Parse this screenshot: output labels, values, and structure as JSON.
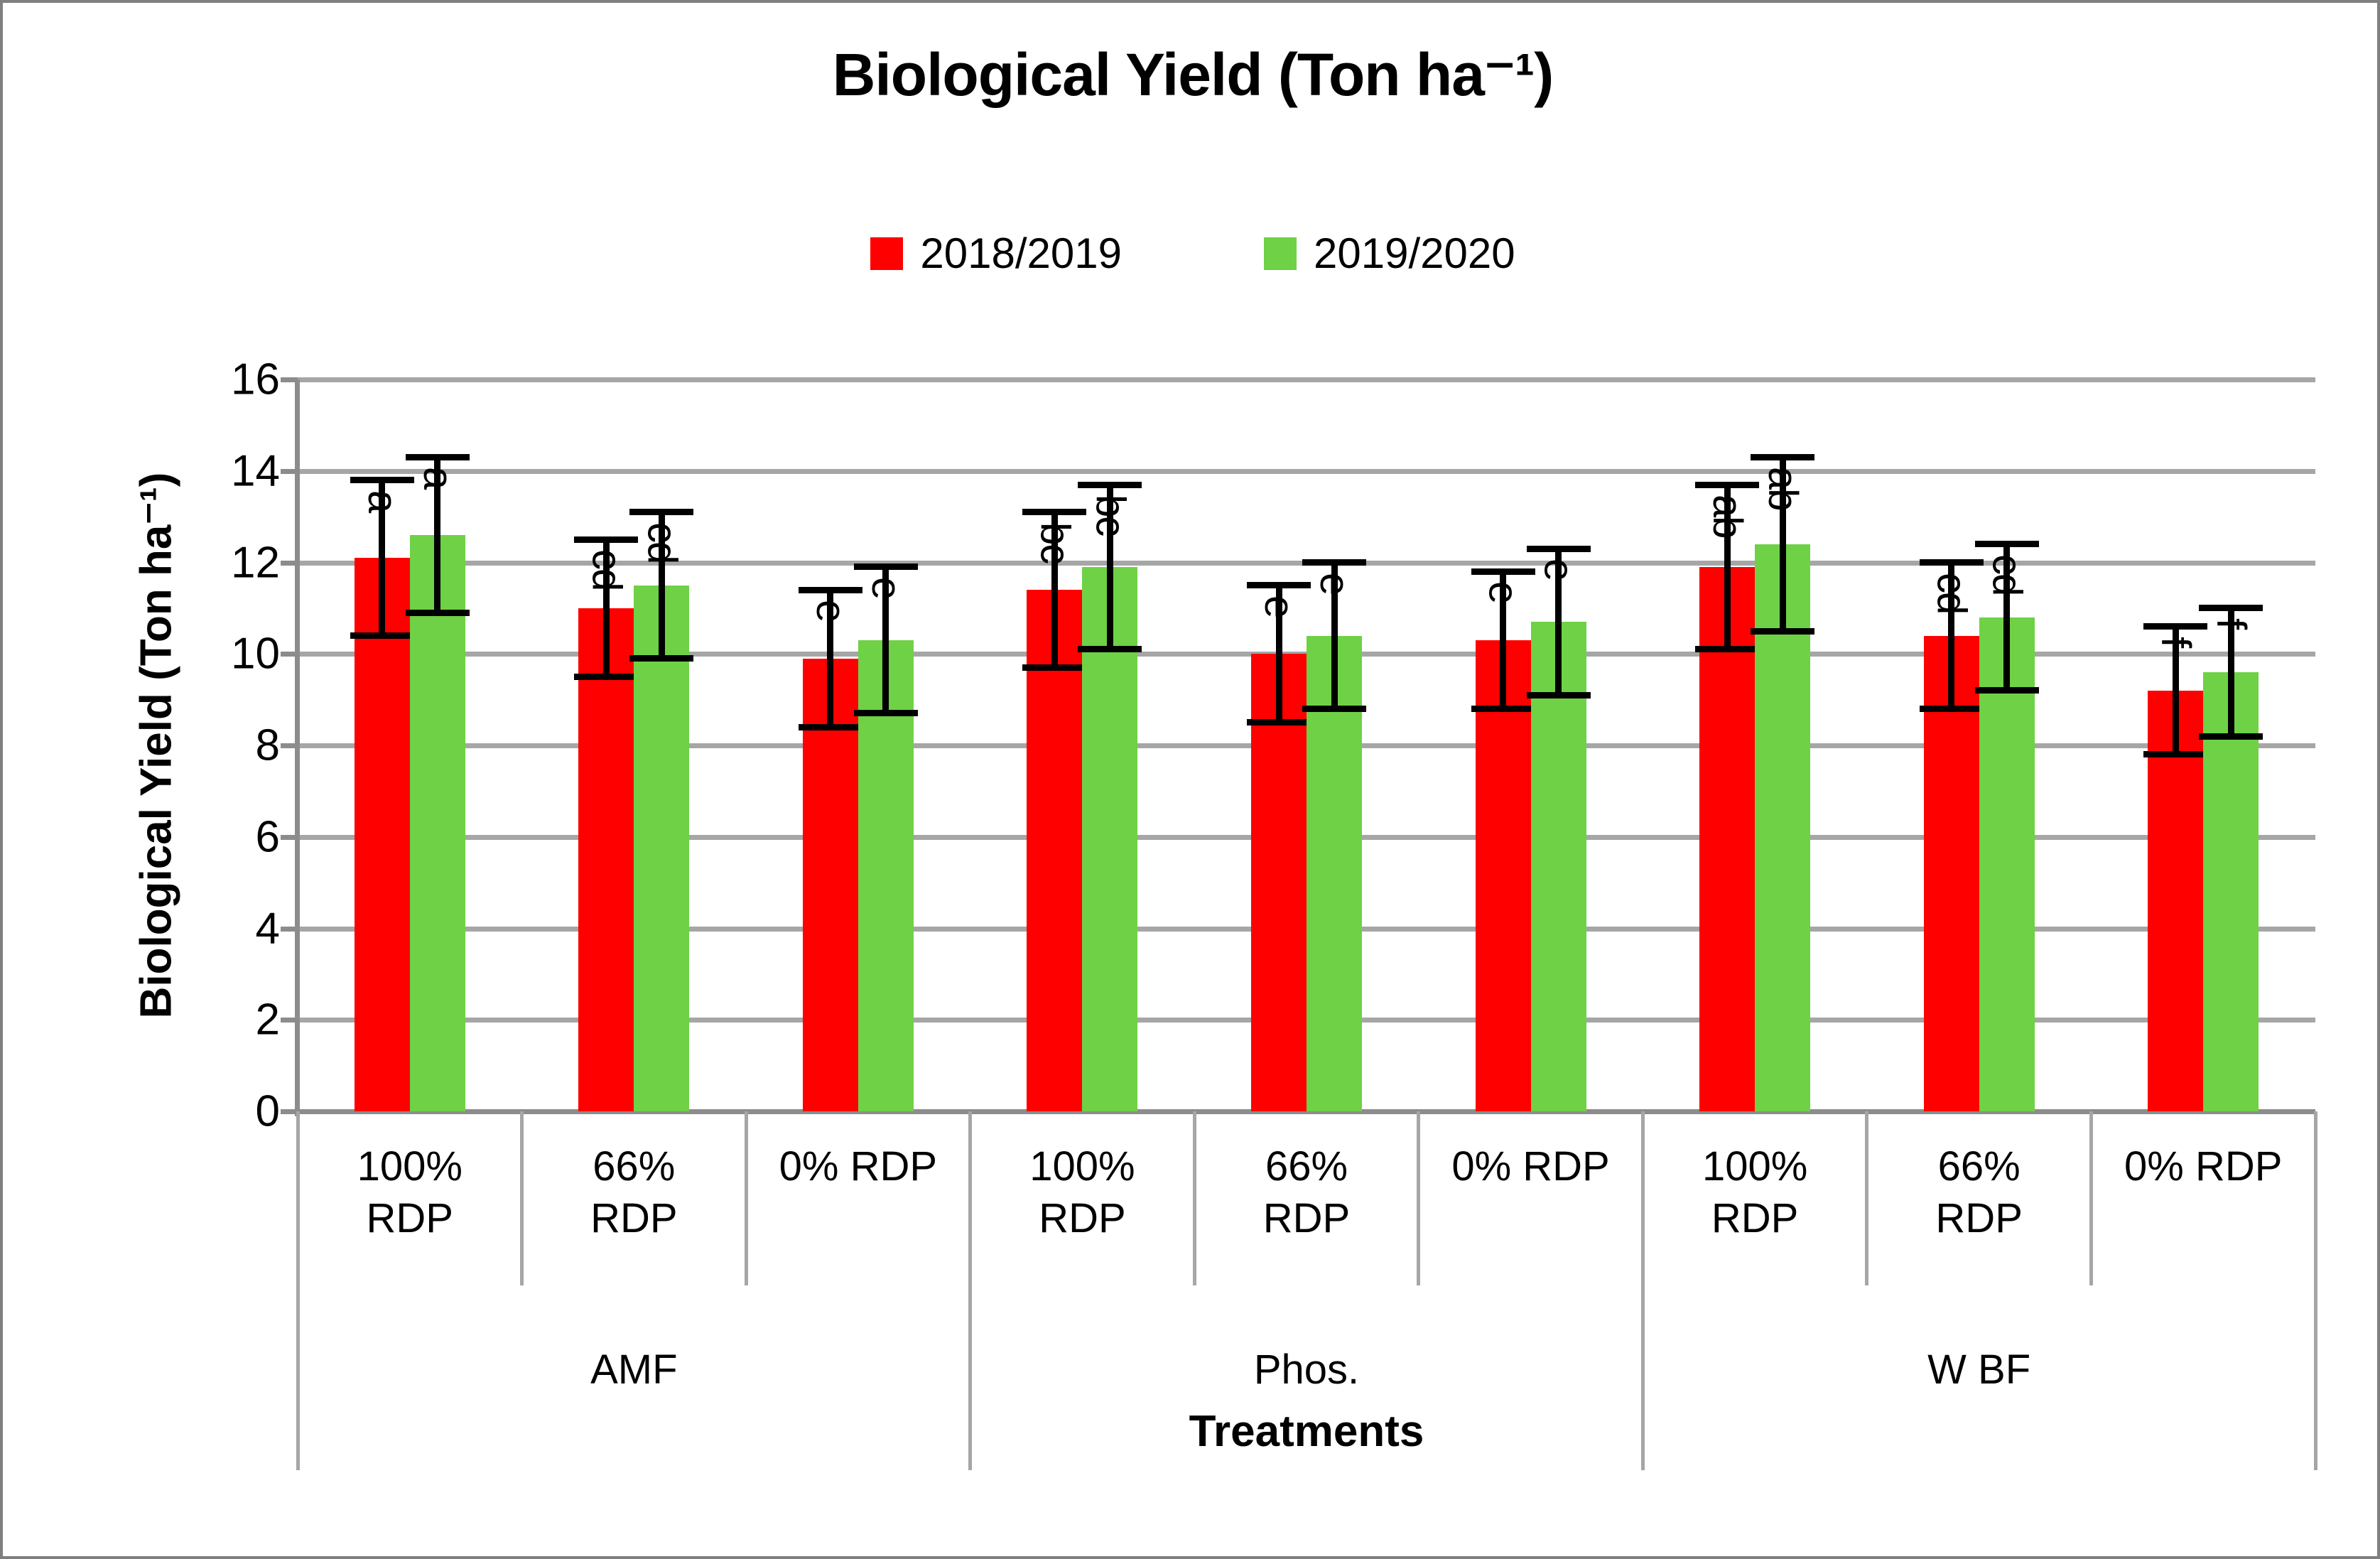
{
  "title": "Biological Yield (Ton ha⁻¹)",
  "legend": [
    {
      "label": "2018/2019",
      "color": "#ff0000"
    },
    {
      "label": "2019/2020",
      "color": "#6fd146"
    }
  ],
  "y_axis": {
    "title": "Biological Yield (Ton ha⁻¹)",
    "tick_labels": [
      "0",
      "2",
      "4",
      "6",
      "8",
      "10",
      "12",
      "14",
      "16"
    ]
  },
  "x_axis": {
    "title": "Treatments"
  },
  "chart_data": {
    "type": "bar",
    "groups": [
      "AMF",
      "Phos.",
      "W BF"
    ],
    "categories": [
      "100% RDP",
      "66% RDP",
      "0% RDP"
    ],
    "ylim": [
      0,
      16
    ],
    "ytick_step": 2,
    "grid": true,
    "legend_position": "top",
    "series": [
      {
        "name": "2018/2019",
        "color": "#ff0000",
        "values": [
          [
            12.1,
            11.0,
            9.9
          ],
          [
            11.4,
            10.0,
            10.3
          ],
          [
            11.9,
            10.4,
            9.2
          ]
        ],
        "errors": [
          [
            1.7,
            1.5,
            1.5
          ],
          [
            1.7,
            1.5,
            1.5
          ],
          [
            1.8,
            1.6,
            1.4
          ]
        ],
        "letters": [
          [
            "a",
            "cd",
            "e"
          ],
          [
            "bc",
            "e",
            "e"
          ],
          [
            "ab",
            "cd",
            "f"
          ]
        ]
      },
      {
        "name": "2019/2020",
        "color": "#6fd146",
        "values": [
          [
            12.6,
            11.5,
            10.3
          ],
          [
            11.9,
            10.4,
            10.7
          ],
          [
            12.4,
            10.8,
            9.6
          ]
        ],
        "errors": [
          [
            1.7,
            1.6,
            1.6
          ],
          [
            1.8,
            1.6,
            1.6
          ],
          [
            1.9,
            1.6,
            1.4
          ]
        ],
        "letters": [
          [
            "a",
            "cd",
            "e"
          ],
          [
            "bc",
            "e",
            "e"
          ],
          [
            "ab",
            "cd",
            "f"
          ]
        ]
      }
    ]
  }
}
